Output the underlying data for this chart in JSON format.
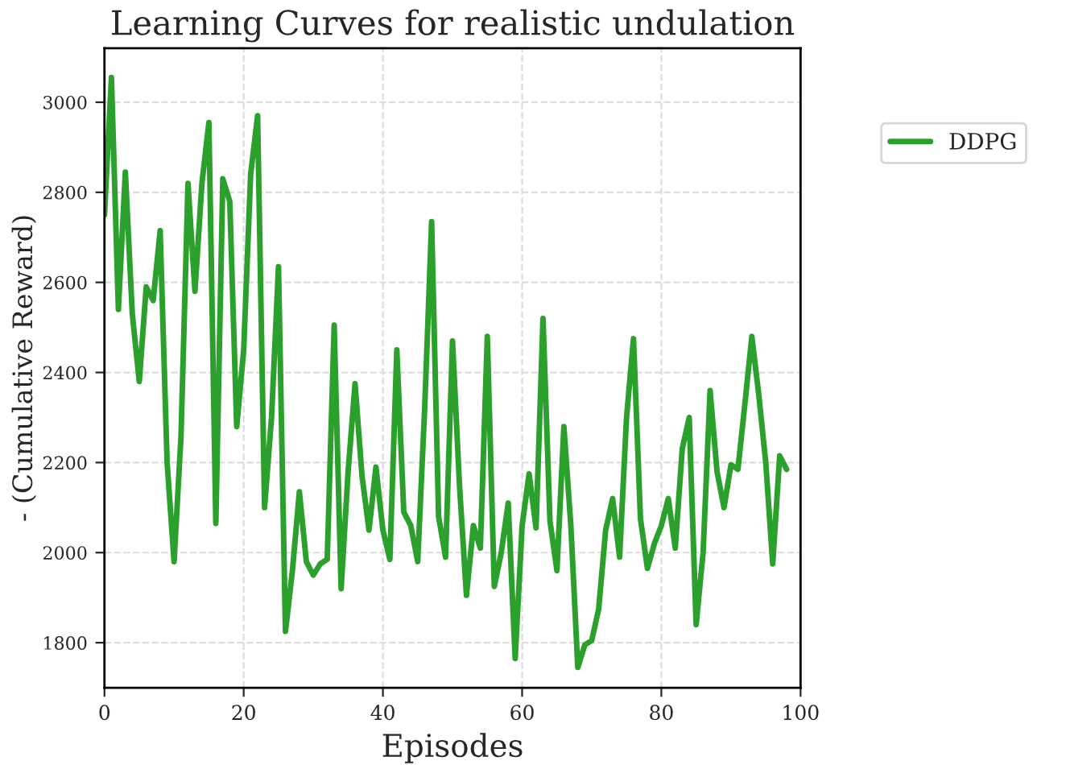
{
  "chart_data": {
    "type": "line",
    "title": "Learning Curves for realistic undulation",
    "xlabel": "Episodes",
    "ylabel": "- (Cumulative Reward)",
    "x": [
      0,
      1,
      2,
      3,
      4,
      5,
      6,
      7,
      8,
      9,
      10,
      11,
      12,
      13,
      14,
      15,
      16,
      17,
      18,
      19,
      20,
      21,
      22,
      23,
      24,
      25,
      26,
      27,
      28,
      29,
      30,
      31,
      32,
      33,
      34,
      35,
      36,
      37,
      38,
      39,
      40,
      41,
      42,
      43,
      44,
      45,
      46,
      47,
      48,
      49,
      50,
      51,
      52,
      53,
      54,
      55,
      56,
      57,
      58,
      59,
      60,
      61,
      62,
      63,
      64,
      65,
      66,
      67,
      68,
      69,
      70,
      71,
      72,
      73,
      74,
      75,
      76,
      77,
      78,
      79,
      80,
      81,
      82,
      83,
      84,
      85,
      86,
      87,
      88,
      89,
      90,
      91,
      92,
      93,
      94,
      95,
      96,
      97,
      98
    ],
    "series": [
      {
        "name": "DDPG",
        "color": "#2ca02c",
        "line_style": "solid",
        "values": [
          2750,
          3055,
          2540,
          2845,
          2530,
          2380,
          2590,
          2560,
          2715,
          2200,
          1980,
          2260,
          2820,
          2580,
          2820,
          2955,
          2065,
          2830,
          2780,
          2280,
          2450,
          2840,
          2970,
          2100,
          2300,
          2635,
          1825,
          1960,
          2135,
          1980,
          1950,
          1975,
          1985,
          2505,
          1920,
          2180,
          2375,
          2170,
          2050,
          2190,
          2050,
          1985,
          2450,
          2090,
          2060,
          1980,
          2320,
          2735,
          2080,
          1990,
          2470,
          2150,
          1905,
          2060,
          2010,
          2480,
          1925,
          2000,
          2110,
          1765,
          2060,
          2175,
          2055,
          2520,
          2070,
          1960,
          2280,
          2060,
          1745,
          1795,
          1805,
          1875,
          2050,
          2120,
          1990,
          2300,
          2475,
          2075,
          1965,
          2020,
          2060,
          2120,
          2010,
          2230,
          2300,
          1840,
          2000,
          2360,
          2180,
          2100,
          2195,
          2185,
          2330,
          2480,
          2350,
          2200,
          1975,
          2215,
          2185
        ]
      }
    ],
    "xlim": [
      0,
      100
    ],
    "xticks": [
      0,
      20,
      40,
      60,
      80,
      100
    ],
    "ylim": [
      1700,
      3120
    ],
    "yticks": [
      1800,
      2000,
      2200,
      2400,
      2600,
      2800,
      3000
    ],
    "grid": true,
    "legend": "top right"
  }
}
